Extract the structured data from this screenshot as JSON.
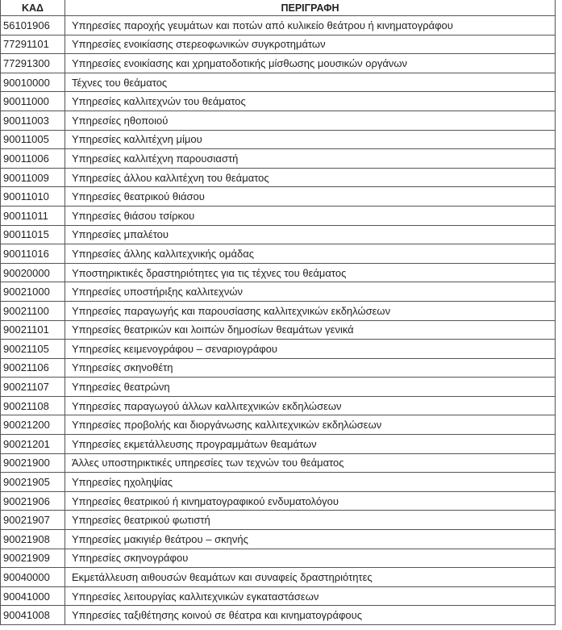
{
  "table": {
    "headers": [
      "ΚΑΔ",
      "ΠΕΡΙΓΡΑΦΗ"
    ],
    "rows": [
      {
        "code": "56101906",
        "desc": "Υπηρεσίες παροχής γευμάτων και ποτών από κυλικείο θεάτρου ή κινηματογράφου"
      },
      {
        "code": "77291101",
        "desc": "Υπηρεσίες ενοικίασης στερεοφωνικών συγκροτημάτων"
      },
      {
        "code": "77291300",
        "desc": "Υπηρεσίες ενοικίασης και χρηματοδοτικής μίσθωσης μουσικών οργάνων"
      },
      {
        "code": "90010000",
        "desc": "Τέχνες του θεάματος"
      },
      {
        "code": "90011000",
        "desc": "Υπηρεσίες καλλιτεχνών του θεάματος"
      },
      {
        "code": "90011003",
        "desc": "Υπηρεσίες ηθοποιού"
      },
      {
        "code": "90011005",
        "desc": "Υπηρεσίες καλλιτέχνη μίμου"
      },
      {
        "code": "90011006",
        "desc": "Υπηρεσίες καλλιτέχνη παρουσιαστή"
      },
      {
        "code": "90011009",
        "desc": "Υπηρεσίες άλλου καλλιτέχνη του θεάματος"
      },
      {
        "code": "90011010",
        "desc": "Υπηρεσίες θεατρικού θιάσου"
      },
      {
        "code": "90011011",
        "desc": "Υπηρεσίες θιάσου τσίρκου"
      },
      {
        "code": "90011015",
        "desc": "Υπηρεσίες μπαλέτου"
      },
      {
        "code": "90011016",
        "desc": "Υπηρεσίες άλλης καλλιτεχνικής ομάδας"
      },
      {
        "code": "90020000",
        "desc": "Υποστηρικτικές δραστηριότητες για τις τέχνες του θεάματος"
      },
      {
        "code": "90021000",
        "desc": "Υπηρεσίες υποστήριξης καλλιτεχνών"
      },
      {
        "code": "90021100",
        "desc": "Υπηρεσίες παραγωγής και παρουσίασης καλλιτεχνικών εκδηλώσεων"
      },
      {
        "code": "90021101",
        "desc": "Υπηρεσίες θεατρικών και λοιπών δημοσίων θεαμάτων γενικά"
      },
      {
        "code": "90021105",
        "desc": "Υπηρεσίες κειμενογράφου – σεναριογράφου"
      },
      {
        "code": "90021106",
        "desc": "Υπηρεσίες σκηνοθέτη"
      },
      {
        "code": "90021107",
        "desc": "Υπηρεσίες θεατρώνη"
      },
      {
        "code": "90021108",
        "desc": "Υπηρεσίες παραγωγού άλλων καλλιτεχνικών εκδηλώσεων"
      },
      {
        "code": "90021200",
        "desc": "Υπηρεσίες προβολής και διοργάνωσης καλλιτεχνικών εκδηλώσεων"
      },
      {
        "code": "90021201",
        "desc": "Υπηρεσίες εκμετάλλευσης προγραμμάτων θεαμάτων"
      },
      {
        "code": "90021900",
        "desc": "Άλλες υποστηρικτικές υπηρεσίες των τεχνών του θεάματος"
      },
      {
        "code": "90021905",
        "desc": "Υπηρεσίες ηχοληψίας"
      },
      {
        "code": "90021906",
        "desc": "Υπηρεσίες θεατρικού ή κινηματογραφικού ενδυματολόγου"
      },
      {
        "code": "90021907",
        "desc": "Υπηρεσίες θεατρικού φωτιστή"
      },
      {
        "code": "90021908",
        "desc": "Υπηρεσίες μακιγιέρ θεάτρου – σκηνής"
      },
      {
        "code": "90021909",
        "desc": "Υπηρεσίες σκηνογράφου"
      },
      {
        "code": "90040000",
        "desc": "Εκμετάλλευση αιθουσών θεαμάτων και συναφείς δραστηριότητες"
      },
      {
        "code": "90041000",
        "desc": "Υπηρεσίες λειτουργίας καλλιτεχνικών εγκαταστάσεων"
      },
      {
        "code": "90041008",
        "desc": "Υπηρεσίες ταξιθέτησης κοινού σε θέατρα και κινηματογράφους"
      }
    ]
  }
}
